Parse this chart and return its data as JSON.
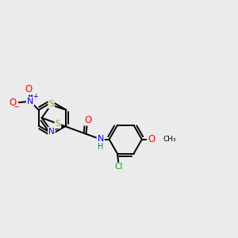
{
  "bg_color": "#ebebeb",
  "bond_color": "#000000",
  "bond_width": 1.4,
  "atom_colors": {
    "S": "#999900",
    "N": "#0000ff",
    "O": "#ff0000",
    "Cl": "#00aa00",
    "C": "#000000",
    "H": "#008080"
  },
  "font_size": 7.0,
  "fig_width": 3.0,
  "fig_height": 3.0,
  "dpi": 100
}
